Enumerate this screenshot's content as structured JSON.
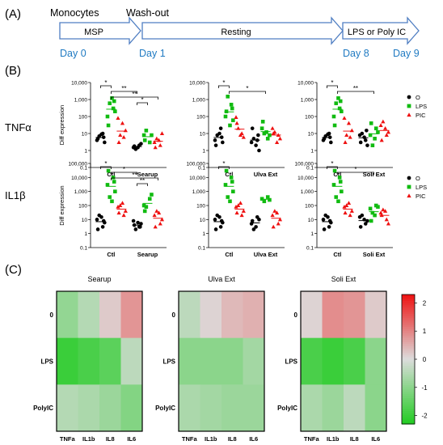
{
  "panel_labels": {
    "a": "(A)",
    "b": "(B)",
    "c": "(C)"
  },
  "timeline": {
    "top_labels": [
      "Monocytes",
      "Wash-out"
    ],
    "arrows": [
      "MSP",
      "Resting",
      "LPS or Poly IC"
    ],
    "days": [
      "Day 0",
      "Day 1",
      "Day 8",
      "Day 9"
    ],
    "day_color": "#1f7ac2",
    "arrow_stroke": "#4f7ec2"
  },
  "chart_data": [
    {
      "type": "scatter",
      "id": "tnf_searup",
      "row_label": "TNFα",
      "ylabel": "Diff expression",
      "yscale": "log",
      "ylim": [
        0.1,
        10000
      ],
      "yticks": [
        "0.1",
        "1",
        "10",
        "100",
        "1,000",
        "10,000"
      ],
      "categories": [
        "Ctl",
        "Searup"
      ],
      "series": [
        {
          "name": "O",
          "values": [
            [
              4,
              10,
              7,
              3,
              5,
              9,
              6
            ],
            [
              1.5,
              2,
              1.2,
              2.5,
              1.8,
              1.5
            ]
          ]
        },
        {
          "name": "LPS",
          "values": [
            [
              100,
              300,
              600,
              200,
              30,
              1200,
              800
            ],
            [
              8,
              3,
              15,
              8,
              4
            ]
          ]
        },
        {
          "name": "PIC",
          "values": [
            [
              80,
              6,
              8,
              15,
              3,
              40
            ],
            [
              3,
              2,
              5,
              10,
              1.5,
              4
            ]
          ]
        }
      ],
      "significance": [
        {
          "label": "*",
          "from": [
            0,
            0
          ],
          "to": [
            0,
            1
          ]
        },
        {
          "label": "**",
          "from": [
            0,
            1
          ],
          "to": [
            1,
            0
          ]
        },
        {
          "label": "**",
          "from": [
            0,
            1
          ],
          "to": [
            1,
            2
          ]
        },
        {
          "label": "*",
          "from": [
            1,
            0
          ],
          "to": [
            1,
            1
          ]
        }
      ]
    },
    {
      "type": "scatter",
      "id": "tnf_ulva",
      "yscale": "log",
      "ylim": [
        0.1,
        10000
      ],
      "yticks": [
        "0.1",
        "1",
        "10",
        "100",
        "1,000",
        "10,000"
      ],
      "categories": [
        "Ctl",
        "Ulva Ext"
      ],
      "series": [
        {
          "name": "O",
          "values": [
            [
              4,
              20,
              8,
              3,
              2,
              10,
              6
            ],
            [
              3,
              4,
              5,
              1,
              20,
              2,
              8
            ]
          ]
        },
        {
          "name": "LPS",
          "values": [
            [
              100,
              500,
              1500,
              60,
              200,
              30,
              300
            ],
            [
              20,
              5,
              10,
              8,
              50,
              12
            ]
          ]
        },
        {
          "name": "PIC",
          "values": [
            [
              90,
              10,
              20,
              6,
              40,
              8
            ],
            [
              20,
              8,
              12,
              5,
              10,
              3
            ]
          ]
        }
      ],
      "significance": [
        {
          "label": "*",
          "from": [
            0,
            0
          ],
          "to": [
            0,
            1
          ]
        },
        {
          "label": "*",
          "from": [
            0,
            1
          ],
          "to": [
            1,
            1
          ]
        }
      ]
    },
    {
      "type": "scatter",
      "id": "tnf_soli",
      "yscale": "log",
      "ylim": [
        0.1,
        10000
      ],
      "yticks": [
        "0.1",
        "1",
        "10",
        "100",
        "1,000",
        "10,000"
      ],
      "categories": [
        "Ctl",
        "Soli Ext"
      ],
      "series": [
        {
          "name": "O",
          "values": [
            [
              4,
              10,
              7,
              3,
              5,
              9,
              6
            ],
            [
              8,
              4,
              10,
              2,
              3,
              6,
              15
            ]
          ]
        },
        {
          "name": "LPS",
          "values": [
            [
              100,
              300,
              600,
              200,
              30,
              1200,
              800
            ],
            [
              8,
              20,
              2,
              12,
              40,
              5
            ]
          ]
        },
        {
          "name": "PIC",
          "values": [
            [
              80,
              6,
              8,
              15,
              3,
              40
            ],
            [
              30,
              8,
              50,
              12,
              4,
              20
            ]
          ]
        }
      ],
      "significance": [
        {
          "label": "*",
          "from": [
            0,
            0
          ],
          "to": [
            0,
            1
          ]
        },
        {
          "label": "**",
          "from": [
            0,
            1
          ],
          "to": [
            1,
            1
          ]
        }
      ],
      "legend": {
        "position": "right",
        "entries": [
          "O",
          "LPS",
          "PIC"
        ]
      }
    },
    {
      "type": "scatter",
      "id": "il1b_searup",
      "row_label": "IL1β",
      "ylabel": "Diff expression",
      "yscale": "log",
      "ylim": [
        0.1,
        100000
      ],
      "yticks": [
        "0.1",
        "1",
        "10",
        "100",
        "1,000",
        "10,000",
        "100,000"
      ],
      "categories": [
        "Ctl",
        "Searup"
      ],
      "series": [
        {
          "name": "O",
          "values": [
            [
              10,
              3,
              20,
              6,
              2,
              15,
              8
            ],
            [
              8,
              3,
              2,
              5,
              4,
              6,
              3
            ]
          ]
        },
        {
          "name": "LPS",
          "values": [
            [
              3000,
              10000,
              400,
              1000,
              30000,
              200,
              5000
            ],
            [
              100,
              300,
              80,
              600,
              40
            ]
          ]
        },
        {
          "name": "PIC",
          "values": [
            [
              80,
              20,
              100,
              40,
              30,
              150
            ],
            [
              20,
              5,
              40,
              10,
              3,
              30
            ]
          ]
        }
      ],
      "significance": [
        {
          "label": "*",
          "from": [
            0,
            0
          ],
          "to": [
            0,
            1
          ]
        },
        {
          "label": "*",
          "from": [
            0,
            1
          ],
          "to": [
            1,
            0
          ]
        },
        {
          "label": "**",
          "from": [
            0,
            1
          ],
          "to": [
            1,
            2
          ]
        },
        {
          "label": "**",
          "from": [
            1,
            0
          ],
          "to": [
            1,
            1
          ]
        }
      ]
    },
    {
      "type": "scatter",
      "id": "il1b_ulva",
      "yscale": "log",
      "ylim": [
        0.1,
        100000
      ],
      "yticks": [
        "0.1",
        "1",
        "10",
        "100",
        "1,000",
        "10,000",
        "100,000"
      ],
      "categories": [
        "Ctl",
        "Ulva Ext"
      ],
      "series": [
        {
          "name": "O",
          "values": [
            [
              10,
              3,
              20,
              6,
              2,
              15,
              8
            ],
            [
              5,
              15,
              2,
              10,
              8,
              3
            ]
          ]
        },
        {
          "name": "LPS",
          "values": [
            [
              3000,
              10000,
              400,
              1000,
              30000,
              200,
              5000
            ],
            [
              300,
              400,
              200,
              250
            ]
          ]
        },
        {
          "name": "PIC",
          "values": [
            [
              80,
              20,
              100,
              40,
              30,
              150
            ],
            [
              20,
              5,
              40,
              10,
              3,
              30
            ]
          ]
        }
      ],
      "significance": [
        {
          "label": "*",
          "from": [
            0,
            0
          ],
          "to": [
            0,
            1
          ]
        }
      ]
    },
    {
      "type": "scatter",
      "id": "il1b_soli",
      "yscale": "log",
      "ylim": [
        0.1,
        100000
      ],
      "yticks": [
        "0.1",
        "1",
        "10",
        "100",
        "1,000",
        "10,000",
        "100,000"
      ],
      "categories": [
        "Ctl",
        "Soli Ext"
      ],
      "series": [
        {
          "name": "O",
          "values": [
            [
              10,
              3,
              20,
              6,
              2,
              15,
              8
            ],
            [
              15,
              5,
              20,
              8,
              3,
              10
            ]
          ]
        },
        {
          "name": "LPS",
          "values": [
            [
              3000,
              10000,
              400,
              1000,
              30000,
              200,
              5000
            ],
            [
              60,
              100,
              30,
              80,
              8,
              20
            ]
          ]
        },
        {
          "name": "PIC",
          "values": [
            [
              80,
              20,
              100,
              40,
              30,
              150
            ],
            [
              30,
              10,
              50,
              5,
              20,
              40
            ]
          ]
        }
      ],
      "significance": [
        {
          "label": "*",
          "from": [
            0,
            0
          ],
          "to": [
            0,
            1
          ]
        },
        {
          "label": "*",
          "from": [
            0,
            1
          ],
          "to": [
            1,
            1
          ]
        }
      ],
      "legend": {
        "position": "right",
        "entries": [
          "O",
          "LPS",
          "PIC"
        ]
      }
    },
    {
      "type": "heatmap",
      "id": "heatmaps",
      "panels": [
        "Searup",
        "Ulva Ext",
        "Soli Ext"
      ],
      "rows": [
        "0",
        "LPS",
        "PolyIC"
      ],
      "columns": [
        "TNFa",
        "IL1b",
        "IL8",
        "IL6"
      ],
      "values": [
        [
          [
            -0.9,
            -0.5,
            0.2,
            0.8
          ],
          [
            -2.0,
            -1.8,
            -1.6,
            -0.4
          ],
          [
            -0.5,
            -0.6,
            -0.8,
            -1.1
          ]
        ],
        [
          [
            -0.4,
            0.1,
            0.4,
            0.5
          ],
          [
            -1.0,
            -1.0,
            -1.0,
            -0.7
          ],
          [
            -0.6,
            -0.7,
            -0.8,
            -0.8
          ]
        ],
        [
          [
            0.1,
            0.9,
            0.8,
            0.2
          ],
          [
            -1.8,
            -2.0,
            -1.8,
            -1.0
          ],
          [
            -0.6,
            -0.8,
            -0.4,
            -1.0
          ]
        ]
      ],
      "colorbar": {
        "min": -2.3,
        "max": 2.3,
        "ticks": [
          "2",
          "1",
          "0",
          "-1",
          "-2"
        ],
        "low_color": "#22cc22",
        "mid_color": "#dcdcdc",
        "high_color": "#ee1111"
      }
    }
  ],
  "colors": {
    "O": "#000000",
    "LPS": "#11bb11",
    "PIC": "#ee1111"
  }
}
